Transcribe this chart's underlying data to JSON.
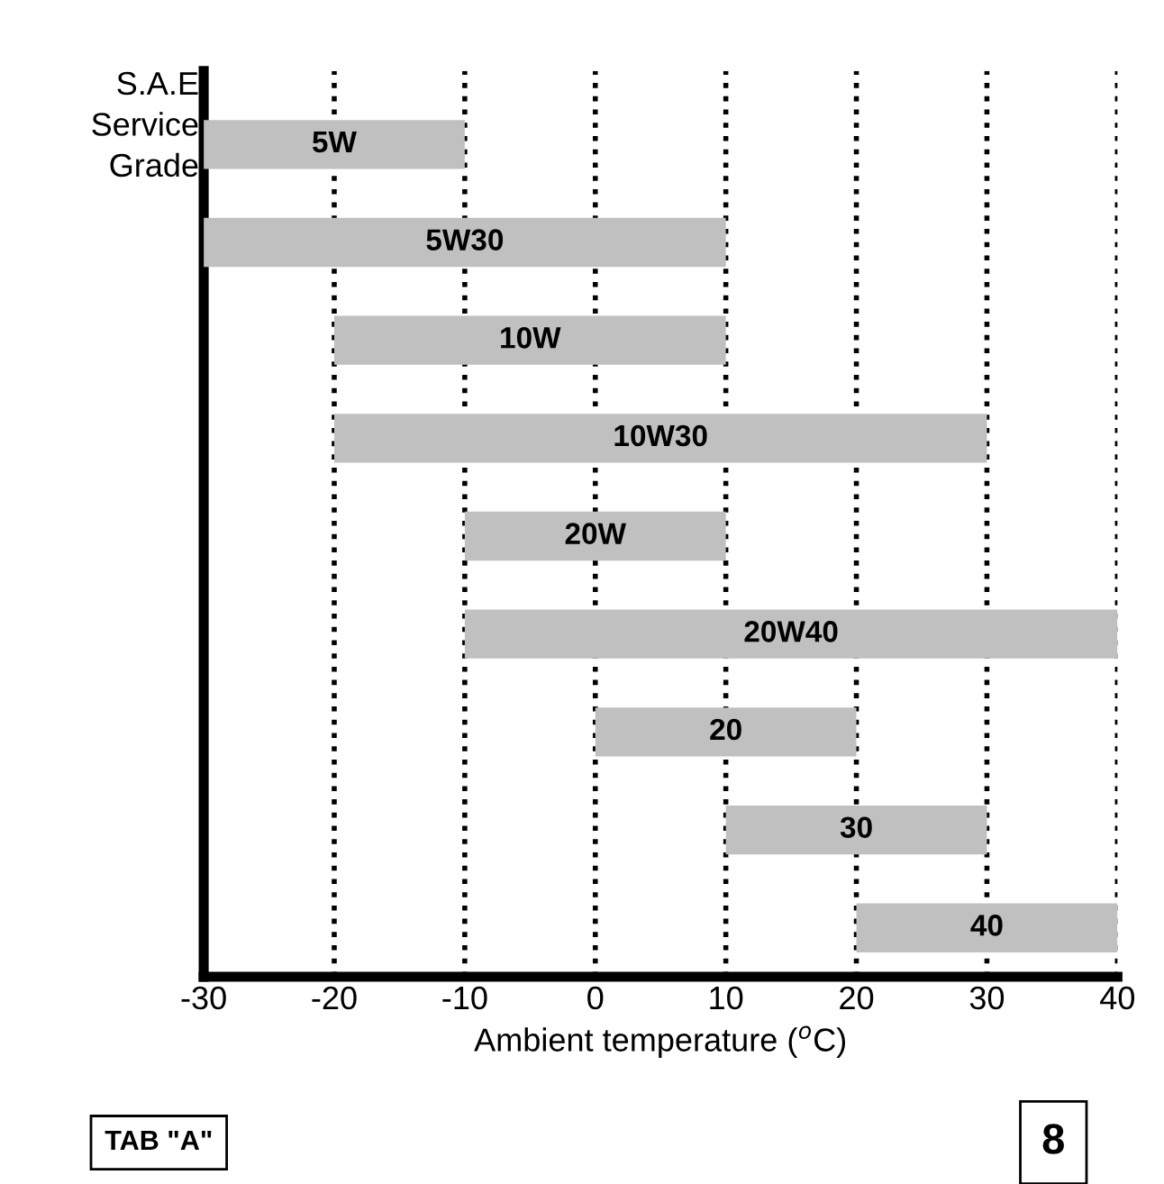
{
  "chart_data": {
    "type": "bar",
    "orientation": "horizontal",
    "ylabel": "S.A.E\nService\nGrade",
    "xlabel": "Ambient temperature ($^{o}$C)",
    "categories": [
      "5W",
      "5W30",
      "10W",
      "10W30",
      "20W",
      "20W40",
      "20",
      "30",
      "40"
    ],
    "base": [
      -30,
      -30,
      -20,
      -20,
      -10,
      -10,
      0,
      10,
      20
    ],
    "values": [
      20,
      40,
      30,
      50,
      20,
      50,
      20,
      20,
      20
    ],
    "color": "#c0c0c0",
    "xlim": [
      -30,
      40
    ],
    "xticks": [
      -30,
      -20,
      -10,
      0,
      10,
      20,
      30,
      40
    ],
    "grid": "x",
    "line_style": "dotted",
    "legend": false,
    "tick_labels": "x",
    "annotations": [
      "TAB \"A\"",
      "8"
    ]
  }
}
